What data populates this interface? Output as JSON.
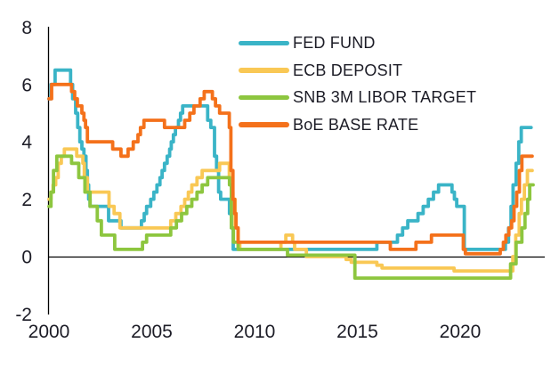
{
  "chart_data": {
    "type": "line",
    "title": "",
    "xlabel": "",
    "ylabel": "",
    "line_style": "step-after",
    "grid": false,
    "legend_position": "top-right-inside",
    "xlim": [
      2000,
      2023.6
    ],
    "ylim": [
      -2,
      8
    ],
    "x_ticks": [
      {
        "label": "2000",
        "year": 2000
      },
      {
        "label": "2005",
        "year": 2005
      },
      {
        "label": "2010",
        "year": 2010
      },
      {
        "label": "2015",
        "year": 2015
      },
      {
        "label": "2020",
        "year": 2020
      }
    ],
    "y_ticks": [
      {
        "label": "8",
        "value": 8
      },
      {
        "label": "6",
        "value": 6
      },
      {
        "label": "4",
        "value": 4
      },
      {
        "label": "2",
        "value": 2
      },
      {
        "label": "0",
        "value": 0
      },
      {
        "label": "-2",
        "value": -2
      }
    ],
    "axis_color": "#000000",
    "text_color": "#1c1c26",
    "series": [
      {
        "name": "FED FUND",
        "color": "#3ab4c7",
        "points": [
          [
            2000.0,
            5.5
          ],
          [
            2000.1,
            6.0
          ],
          [
            2000.3,
            6.5
          ],
          [
            2001.05,
            6.0
          ],
          [
            2001.15,
            5.5
          ],
          [
            2001.3,
            5.0
          ],
          [
            2001.4,
            4.5
          ],
          [
            2001.5,
            4.0
          ],
          [
            2001.6,
            3.75
          ],
          [
            2001.7,
            3.5
          ],
          [
            2001.8,
            3.0
          ],
          [
            2001.87,
            2.5
          ],
          [
            2001.93,
            2.0
          ],
          [
            2002.0,
            1.75
          ],
          [
            2002.9,
            1.25
          ],
          [
            2003.5,
            1.0
          ],
          [
            2004.5,
            1.25
          ],
          [
            2004.63,
            1.5
          ],
          [
            2004.75,
            1.75
          ],
          [
            2004.95,
            2.0
          ],
          [
            2005.1,
            2.25
          ],
          [
            2005.25,
            2.5
          ],
          [
            2005.4,
            2.75
          ],
          [
            2005.5,
            3.0
          ],
          [
            2005.62,
            3.25
          ],
          [
            2005.75,
            3.5
          ],
          [
            2005.87,
            3.75
          ],
          [
            2005.95,
            4.0
          ],
          [
            2006.05,
            4.25
          ],
          [
            2006.15,
            4.5
          ],
          [
            2006.3,
            4.75
          ],
          [
            2006.4,
            5.0
          ],
          [
            2006.5,
            5.25
          ],
          [
            2007.72,
            4.75
          ],
          [
            2007.87,
            4.5
          ],
          [
            2008.05,
            3.5
          ],
          [
            2008.15,
            3.0
          ],
          [
            2008.25,
            2.25
          ],
          [
            2008.35,
            2.0
          ],
          [
            2008.78,
            1.5
          ],
          [
            2008.87,
            1.0
          ],
          [
            2008.96,
            0.25
          ],
          [
            2015.95,
            0.5
          ],
          [
            2016.95,
            0.75
          ],
          [
            2017.2,
            1.0
          ],
          [
            2017.45,
            1.25
          ],
          [
            2017.95,
            1.5
          ],
          [
            2018.2,
            1.75
          ],
          [
            2018.45,
            2.0
          ],
          [
            2018.7,
            2.25
          ],
          [
            2018.95,
            2.5
          ],
          [
            2019.6,
            2.25
          ],
          [
            2019.72,
            2.0
          ],
          [
            2019.83,
            1.75
          ],
          [
            2020.2,
            0.25
          ],
          [
            2022.2,
            0.5
          ],
          [
            2022.35,
            1.0
          ],
          [
            2022.47,
            1.75
          ],
          [
            2022.57,
            2.5
          ],
          [
            2022.72,
            3.25
          ],
          [
            2022.85,
            4.0
          ],
          [
            2022.97,
            4.5
          ],
          [
            2023.45,
            4.5
          ]
        ]
      },
      {
        "name": "ECB DEPOSIT",
        "color": "#f9c855",
        "points": [
          [
            2000.0,
            2.0
          ],
          [
            2000.1,
            2.25
          ],
          [
            2000.2,
            2.5
          ],
          [
            2000.33,
            2.75
          ],
          [
            2000.45,
            3.25
          ],
          [
            2000.6,
            3.5
          ],
          [
            2000.75,
            3.75
          ],
          [
            2001.35,
            3.5
          ],
          [
            2001.65,
            3.25
          ],
          [
            2001.72,
            2.75
          ],
          [
            2001.87,
            2.25
          ],
          [
            2002.92,
            1.75
          ],
          [
            2003.17,
            1.5
          ],
          [
            2003.45,
            1.0
          ],
          [
            2005.92,
            1.25
          ],
          [
            2006.17,
            1.5
          ],
          [
            2006.42,
            1.75
          ],
          [
            2006.6,
            2.0
          ],
          [
            2006.78,
            2.25
          ],
          [
            2006.95,
            2.5
          ],
          [
            2007.2,
            2.75
          ],
          [
            2007.45,
            3.0
          ],
          [
            2008.3,
            3.25
          ],
          [
            2008.77,
            2.75
          ],
          [
            2008.87,
            2.25
          ],
          [
            2008.95,
            2.0
          ],
          [
            2009.05,
            1.0
          ],
          [
            2009.2,
            0.5
          ],
          [
            2009.28,
            0.25
          ],
          [
            2011.28,
            0.5
          ],
          [
            2011.52,
            0.75
          ],
          [
            2011.85,
            0.5
          ],
          [
            2011.95,
            0.25
          ],
          [
            2012.52,
            0.0
          ],
          [
            2014.45,
            -0.1
          ],
          [
            2014.7,
            -0.2
          ],
          [
            2015.95,
            -0.3
          ],
          [
            2016.2,
            -0.4
          ],
          [
            2019.7,
            -0.5
          ],
          [
            2022.56,
            0.0
          ],
          [
            2022.7,
            0.75
          ],
          [
            2022.87,
            1.5
          ],
          [
            2022.98,
            2.0
          ],
          [
            2023.12,
            2.5
          ],
          [
            2023.27,
            3.0
          ],
          [
            2023.5,
            3.0
          ]
        ]
      },
      {
        "name": "SNB 3M LIBOR TARGET",
        "color": "#8dc63f",
        "points": [
          [
            2000.0,
            1.75
          ],
          [
            2000.1,
            2.25
          ],
          [
            2000.22,
            3.0
          ],
          [
            2000.38,
            3.5
          ],
          [
            2001.1,
            3.25
          ],
          [
            2001.45,
            2.75
          ],
          [
            2001.75,
            2.25
          ],
          [
            2002.0,
            1.75
          ],
          [
            2002.35,
            1.25
          ],
          [
            2002.55,
            0.75
          ],
          [
            2003.2,
            0.25
          ],
          [
            2004.55,
            0.5
          ],
          [
            2004.75,
            0.75
          ],
          [
            2005.92,
            1.0
          ],
          [
            2006.2,
            1.25
          ],
          [
            2006.45,
            1.5
          ],
          [
            2006.7,
            1.75
          ],
          [
            2006.95,
            2.0
          ],
          [
            2007.2,
            2.25
          ],
          [
            2007.45,
            2.5
          ],
          [
            2007.72,
            2.75
          ],
          [
            2008.78,
            2.5
          ],
          [
            2008.87,
            1.0
          ],
          [
            2008.97,
            0.5
          ],
          [
            2009.2,
            0.25
          ],
          [
            2011.6,
            0.05
          ],
          [
            2014.88,
            -0.75
          ],
          [
            2022.45,
            -0.25
          ],
          [
            2022.72,
            0.5
          ],
          [
            2023.0,
            1.0
          ],
          [
            2023.15,
            1.5
          ],
          [
            2023.28,
            2.0
          ],
          [
            2023.38,
            2.5
          ],
          [
            2023.55,
            2.5
          ]
        ]
      },
      {
        "name": "BoE BASE RATE",
        "color": "#f4711b",
        "points": [
          [
            2000.0,
            5.5
          ],
          [
            2000.13,
            6.0
          ],
          [
            2001.1,
            5.75
          ],
          [
            2001.25,
            5.5
          ],
          [
            2001.38,
            5.25
          ],
          [
            2001.6,
            5.0
          ],
          [
            2001.7,
            4.75
          ],
          [
            2001.78,
            4.5
          ],
          [
            2001.87,
            4.0
          ],
          [
            2003.1,
            3.75
          ],
          [
            2003.5,
            3.5
          ],
          [
            2003.85,
            3.75
          ],
          [
            2004.1,
            4.0
          ],
          [
            2004.33,
            4.25
          ],
          [
            2004.45,
            4.5
          ],
          [
            2004.62,
            4.75
          ],
          [
            2005.62,
            4.5
          ],
          [
            2006.6,
            4.75
          ],
          [
            2006.85,
            5.0
          ],
          [
            2007.05,
            5.25
          ],
          [
            2007.35,
            5.5
          ],
          [
            2007.55,
            5.75
          ],
          [
            2007.95,
            5.5
          ],
          [
            2008.1,
            5.25
          ],
          [
            2008.3,
            5.0
          ],
          [
            2008.77,
            4.5
          ],
          [
            2008.85,
            3.0
          ],
          [
            2008.95,
            2.0
          ],
          [
            2009.03,
            1.5
          ],
          [
            2009.1,
            1.0
          ],
          [
            2009.2,
            0.5
          ],
          [
            2016.6,
            0.25
          ],
          [
            2017.85,
            0.5
          ],
          [
            2018.6,
            0.75
          ],
          [
            2020.15,
            0.25
          ],
          [
            2020.25,
            0.1
          ],
          [
            2021.95,
            0.25
          ],
          [
            2022.1,
            0.5
          ],
          [
            2022.22,
            0.75
          ],
          [
            2022.37,
            1.0
          ],
          [
            2022.5,
            1.25
          ],
          [
            2022.62,
            1.75
          ],
          [
            2022.75,
            2.25
          ],
          [
            2022.88,
            3.0
          ],
          [
            2023.0,
            3.5
          ],
          [
            2023.5,
            3.5
          ]
        ]
      }
    ]
  }
}
